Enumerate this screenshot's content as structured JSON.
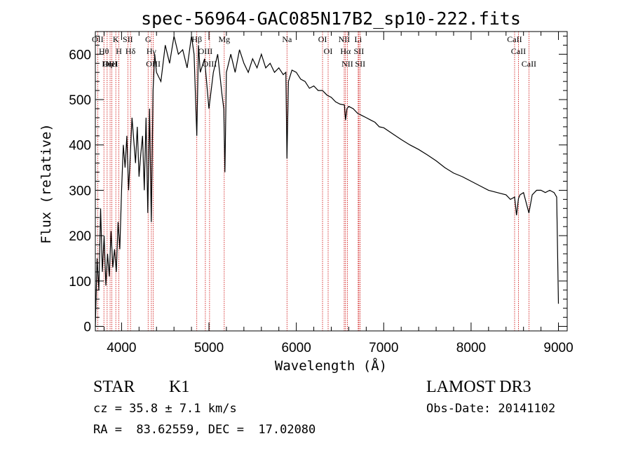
{
  "chart_data": {
    "type": "line",
    "title": "spec-56964-GAC085N17B2_sp10-222.fits",
    "xlabel": "Wavelength (Å)",
    "ylabel": "Flux (relative)",
    "xlim": [
      3700,
      9100
    ],
    "ylim": [
      -10,
      650
    ],
    "x_ticks": [
      4000,
      5000,
      6000,
      7000,
      8000,
      9000
    ],
    "y_ticks": [
      0,
      100,
      200,
      300,
      400,
      500,
      600
    ],
    "x_tick_labels": [
      "4000",
      "5000",
      "6000",
      "7000",
      "8000",
      "9000"
    ],
    "y_tick_labels": [
      "0",
      "100",
      "200",
      "300",
      "400",
      "500",
      "600"
    ],
    "series": [
      {
        "name": "flux",
        "x": [
          3700,
          3720,
          3740,
          3760,
          3780,
          3800,
          3820,
          3840,
          3860,
          3880,
          3900,
          3920,
          3940,
          3960,
          3980,
          4000,
          4020,
          4040,
          4060,
          4080,
          4100,
          4120,
          4140,
          4160,
          4180,
          4200,
          4220,
          4240,
          4260,
          4280,
          4300,
          4320,
          4340,
          4360,
          4380,
          4400,
          4450,
          4500,
          4550,
          4600,
          4650,
          4700,
          4750,
          4800,
          4830,
          4861,
          4880,
          4900,
          4950,
          5000,
          5050,
          5100,
          5150,
          5170,
          5183,
          5200,
          5250,
          5300,
          5350,
          5400,
          5450,
          5500,
          5550,
          5600,
          5650,
          5700,
          5750,
          5800,
          5850,
          5880,
          5893,
          5910,
          5950,
          6000,
          6050,
          6100,
          6150,
          6200,
          6250,
          6300,
          6350,
          6400,
          6450,
          6500,
          6550,
          6563,
          6580,
          6600,
          6650,
          6700,
          6750,
          6800,
          6850,
          6900,
          6950,
          7000,
          7100,
          7200,
          7300,
          7400,
          7500,
          7600,
          7700,
          7800,
          7900,
          8000,
          8100,
          8200,
          8300,
          8400,
          8450,
          8498,
          8520,
          8542,
          8560,
          8600,
          8662,
          8700,
          8750,
          8800,
          8850,
          8900,
          8950,
          8980,
          9000
        ],
        "y": [
          0,
          150,
          80,
          260,
          120,
          200,
          90,
          160,
          110,
          210,
          130,
          170,
          120,
          230,
          170,
          300,
          400,
          350,
          420,
          300,
          380,
          460,
          410,
          360,
          440,
          330,
          380,
          420,
          300,
          460,
          250,
          480,
          230,
          520,
          600,
          560,
          540,
          620,
          580,
          640,
          600,
          610,
          570,
          640,
          600,
          420,
          620,
          560,
          590,
          480,
          560,
          600,
          510,
          480,
          340,
          560,
          600,
          560,
          610,
          580,
          560,
          590,
          570,
          600,
          570,
          580,
          560,
          570,
          555,
          560,
          370,
          540,
          565,
          560,
          545,
          540,
          525,
          530,
          520,
          520,
          510,
          505,
          495,
          490,
          488,
          455,
          480,
          485,
          480,
          470,
          465,
          460,
          455,
          450,
          440,
          438,
          425,
          412,
          400,
          390,
          378,
          365,
          350,
          338,
          330,
          320,
          310,
          300,
          295,
          290,
          280,
          285,
          245,
          282,
          290,
          295,
          250,
          290,
          300,
          300,
          295,
          300,
          295,
          285,
          50
        ]
      }
    ],
    "spectral_lines": [
      {
        "label": "Hθ",
        "wavelength": 3798
      },
      {
        "label": "OII",
        "wavelength": 3727
      },
      {
        "label": "OIII",
        "wavelength": 3869
      },
      {
        "label": "K",
        "wavelength": 3934
      },
      {
        "label": "HeI",
        "wavelength": 3889
      },
      {
        "label": "Hη",
        "wavelength": 3835
      },
      {
        "label": "H",
        "wavelength": 3969
      },
      {
        "label": "SII",
        "wavelength": 4072
      },
      {
        "label": "Hδ",
        "wavelength": 4102
      },
      {
        "label": "OIII",
        "wavelength": 4363
      },
      {
        "label": "Hγ",
        "wavelength": 4341
      },
      {
        "label": "G",
        "wavelength": 4304
      },
      {
        "label": "OIII",
        "wavelength": 5007
      },
      {
        "label": "OIII",
        "wavelength": 4959
      },
      {
        "label": "Hβ",
        "wavelength": 4861
      },
      {
        "label": "Mg",
        "wavelength": 5175
      },
      {
        "label": "Na",
        "wavelength": 5893
      },
      {
        "label": "OI",
        "wavelength": 6300
      },
      {
        "label": "OI",
        "wavelength": 6364
      },
      {
        "label": "Hα",
        "wavelength": 6563
      },
      {
        "label": "NII",
        "wavelength": 6548
      },
      {
        "label": "NII",
        "wavelength": 6584
      },
      {
        "label": "SII",
        "wavelength": 6716
      },
      {
        "label": "Li",
        "wavelength": 6708
      },
      {
        "label": "SII",
        "wavelength": 6731
      },
      {
        "label": "CaII",
        "wavelength": 8542
      },
      {
        "label": "CaII",
        "wavelength": 8498
      },
      {
        "label": "CaII",
        "wavelength": 8662
      }
    ],
    "line_color": "#000000",
    "marker_color": "#cc0000"
  },
  "info": {
    "object_class": "STAR",
    "subclass": "K1",
    "survey": "LAMOST DR3",
    "velocity": "cz = 35.8 ± 7.1 km/s",
    "obs_date": "Obs-Date: 20141102",
    "coords": "RA =  83.62559, DEC =  17.02080"
  }
}
